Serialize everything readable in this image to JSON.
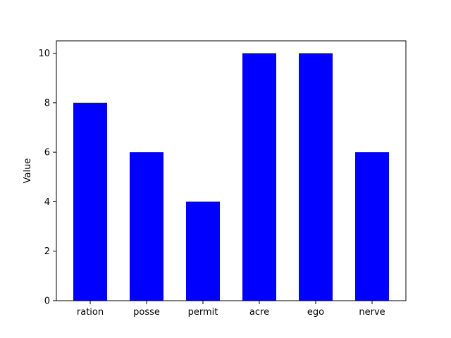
{
  "chart_data": {
    "type": "bar",
    "title": "",
    "xlabel": "",
    "ylabel": "Value",
    "categories": [
      "ration",
      "posse",
      "permit",
      "acre",
      "ego",
      "nerve"
    ],
    "values": [
      8,
      6,
      4,
      10,
      10,
      6
    ],
    "ylim": [
      0,
      10.5
    ],
    "yticks": [
      0,
      2,
      4,
      6,
      8,
      10
    ],
    "bar_color": "#0000ff",
    "grid": false,
    "legend": "none"
  }
}
